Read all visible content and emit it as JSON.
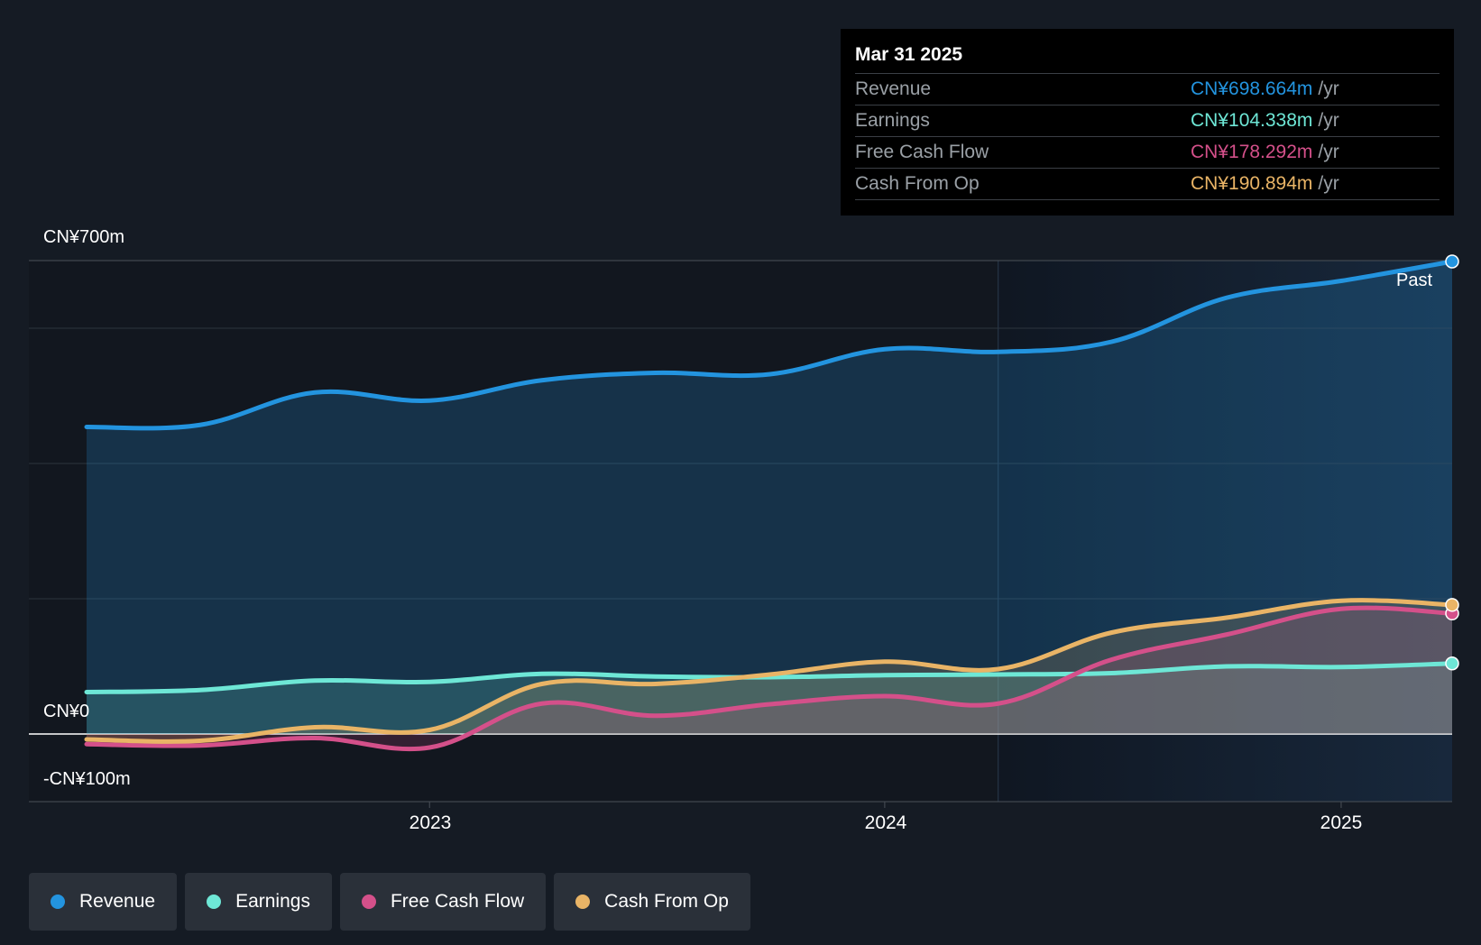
{
  "chart_data": {
    "type": "line",
    "x_axis": {
      "ticks": [
        "2023",
        "2024",
        "2025"
      ],
      "range": [
        "2022-04-01",
        "2025-03-31"
      ]
    },
    "y_axis": {
      "unit": "CN¥m",
      "ylim": [
        -100,
        700
      ],
      "labels": [
        "CN¥700m",
        "CN¥0",
        "-CN¥100m"
      ]
    },
    "grid": true,
    "legend_placement": "bottom-left",
    "annotation": "Past",
    "series": [
      {
        "name": "Revenue",
        "color": "#2394df",
        "points": [
          [
            "2022-04-01",
            454
          ],
          [
            "2022-07-01",
            457
          ],
          [
            "2022-10-01",
            505
          ],
          [
            "2023-01-01",
            493
          ],
          [
            "2023-04-01",
            523
          ],
          [
            "2023-07-01",
            534
          ],
          [
            "2023-10-01",
            532
          ],
          [
            "2024-01-01",
            569
          ],
          [
            "2024-04-01",
            565
          ],
          [
            "2024-07-01",
            580
          ],
          [
            "2024-10-01",
            645
          ],
          [
            "2025-01-01",
            670
          ],
          [
            "2025-03-31",
            698.664
          ]
        ]
      },
      {
        "name": "Earnings",
        "color": "#6ee7d6",
        "points": [
          [
            "2022-04-01",
            62
          ],
          [
            "2022-07-01",
            65
          ],
          [
            "2022-10-01",
            79
          ],
          [
            "2023-01-01",
            77
          ],
          [
            "2023-04-01",
            89
          ],
          [
            "2023-07-01",
            85
          ],
          [
            "2023-10-01",
            84
          ],
          [
            "2024-01-01",
            87
          ],
          [
            "2024-04-01",
            88
          ],
          [
            "2024-07-01",
            90
          ],
          [
            "2024-10-01",
            100
          ],
          [
            "2025-01-01",
            99
          ],
          [
            "2025-03-31",
            104.338
          ]
        ]
      },
      {
        "name": "Free Cash Flow",
        "color": "#d4508a",
        "points": [
          [
            "2022-04-01",
            -15
          ],
          [
            "2022-07-01",
            -17
          ],
          [
            "2022-10-01",
            -6
          ],
          [
            "2023-01-01",
            -20
          ],
          [
            "2023-04-01",
            45
          ],
          [
            "2023-07-01",
            27
          ],
          [
            "2023-10-01",
            44
          ],
          [
            "2024-01-01",
            56
          ],
          [
            "2024-04-01",
            45
          ],
          [
            "2024-07-01",
            110
          ],
          [
            "2024-10-01",
            147
          ],
          [
            "2025-01-01",
            185
          ],
          [
            "2025-03-31",
            178.292
          ]
        ]
      },
      {
        "name": "Cash From Op",
        "color": "#e9b466",
        "points": [
          [
            "2022-04-01",
            -8
          ],
          [
            "2022-07-01",
            -10
          ],
          [
            "2022-10-01",
            10
          ],
          [
            "2023-01-01",
            6
          ],
          [
            "2023-04-01",
            74
          ],
          [
            "2023-07-01",
            74
          ],
          [
            "2023-10-01",
            88
          ],
          [
            "2024-01-01",
            107
          ],
          [
            "2024-04-01",
            96
          ],
          [
            "2024-07-01",
            150
          ],
          [
            "2024-10-01",
            172
          ],
          [
            "2025-01-01",
            197
          ],
          [
            "2025-03-31",
            190.894
          ]
        ]
      }
    ]
  },
  "tooltip": {
    "date": "Mar 31 2025",
    "rows": [
      {
        "name": "Revenue",
        "value": "CN¥698.664m",
        "unit": "/yr",
        "color": "#2394df"
      },
      {
        "name": "Earnings",
        "value": "CN¥104.338m",
        "unit": "/yr",
        "color": "#6ee7d6"
      },
      {
        "name": "Free Cash Flow",
        "value": "CN¥178.292m",
        "unit": "/yr",
        "color": "#d4508a"
      },
      {
        "name": "Cash From Op",
        "value": "CN¥190.894m",
        "unit": "/yr",
        "color": "#e9b466"
      }
    ]
  },
  "legend": [
    {
      "label": "Revenue",
      "color": "#2394df"
    },
    {
      "label": "Earnings",
      "color": "#6ee7d6"
    },
    {
      "label": "Free Cash Flow",
      "color": "#d4508a"
    },
    {
      "label": "Cash From Op",
      "color": "#e9b466"
    }
  ]
}
